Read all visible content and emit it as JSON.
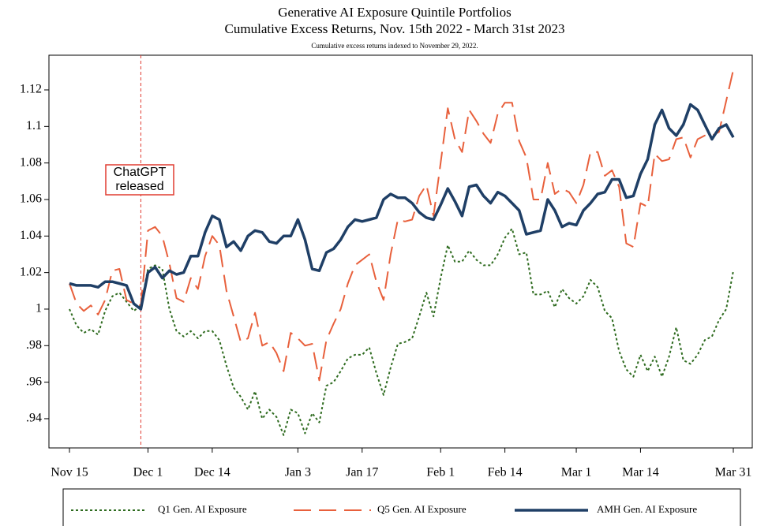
{
  "chart_data": {
    "type": "line",
    "title": [
      "Generative AI Exposure Quintile Portfolios",
      "Cumulative Excess Returns, Nov. 15th 2022 - March 31st 2023"
    ],
    "subtitle": "Cumulative excess returns indexed to November 29, 2022.",
    "categories": [
      "Nov 15",
      null,
      null,
      null,
      null,
      null,
      null,
      null,
      null,
      null,
      null,
      "Dec 1",
      null,
      null,
      null,
      null,
      null,
      null,
      null,
      null,
      "Dec 14",
      null,
      null,
      null,
      null,
      null,
      null,
      null,
      null,
      null,
      null,
      null,
      "Jan 3",
      null,
      null,
      null,
      null,
      null,
      null,
      null,
      null,
      "Jan 17",
      null,
      null,
      null,
      null,
      null,
      null,
      null,
      null,
      null,
      null,
      "Feb 1",
      null,
      null,
      null,
      null,
      null,
      null,
      null,
      null,
      "Feb 14",
      null,
      null,
      null,
      null,
      null,
      null,
      null,
      null,
      null,
      "Mar 1",
      null,
      null,
      null,
      null,
      null,
      null,
      null,
      null,
      "Mar 14",
      null,
      null,
      null,
      null,
      null,
      null,
      null,
      null,
      null,
      null,
      null,
      null,
      "Mar 31"
    ],
    "series": [
      {
        "name": "Q1 Gen. AI Exposure",
        "color": "#2e6b1f",
        "dash": "3,3",
        "values": [
          1.0,
          0.991,
          0.987,
          0.989,
          0.986,
          0.999,
          1.007,
          1.009,
          1.004,
          0.999,
          1.002,
          1.022,
          1.024,
          1.022,
          1.0,
          0.988,
          0.985,
          0.988,
          0.984,
          0.988,
          0.988,
          0.983,
          0.969,
          0.957,
          0.952,
          0.945,
          0.955,
          0.94,
          0.945,
          0.941,
          0.931,
          0.945,
          0.943,
          0.932,
          0.943,
          0.938,
          0.958,
          0.96,
          0.966,
          0.973,
          0.975,
          0.975,
          0.979,
          0.965,
          0.953,
          0.968,
          0.981,
          0.982,
          0.984,
          0.996,
          1.009,
          0.996,
          1.017,
          1.035,
          1.026,
          1.026,
          1.032,
          1.027,
          1.024,
          1.024,
          1.03,
          1.039,
          1.044,
          1.03,
          1.031,
          1.008,
          1.008,
          1.01,
          1.001,
          1.011,
          1.006,
          1.003,
          1.007,
          1.016,
          1.012,
          0.999,
          0.995,
          0.977,
          0.967,
          0.963,
          0.975,
          0.966,
          0.974,
          0.963,
          0.974,
          0.99,
          0.972,
          0.97,
          0.975,
          0.983,
          0.985,
          0.994,
          1.0,
          1.021
        ]
      },
      {
        "name": "Q5 Gen. AI Exposure",
        "color": "#e8603c",
        "dash": "22,10",
        "values": [
          1.014,
          1.003,
          0.999,
          1.002,
          0.997,
          1.005,
          1.021,
          1.022,
          1.005,
          1.003,
          1.002,
          1.043,
          1.045,
          1.04,
          1.025,
          1.006,
          1.004,
          1.017,
          1.011,
          1.029,
          1.04,
          1.035,
          1.01,
          0.996,
          0.982,
          0.984,
          0.998,
          0.98,
          0.982,
          0.976,
          0.966,
          0.987,
          0.984,
          0.98,
          0.981,
          0.961,
          0.983,
          0.992,
          1.0,
          1.014,
          1.024,
          1.027,
          1.03,
          1.015,
          1.005,
          1.03,
          1.049,
          1.048,
          1.049,
          1.062,
          1.068,
          1.051,
          1.08,
          1.11,
          1.093,
          1.086,
          1.109,
          1.103,
          1.096,
          1.091,
          1.107,
          1.113,
          1.113,
          1.092,
          1.083,
          1.06,
          1.06,
          1.08,
          1.063,
          1.066,
          1.064,
          1.058,
          1.068,
          1.086,
          1.086,
          1.073,
          1.076,
          1.067,
          1.036,
          1.034,
          1.058,
          1.056,
          1.085,
          1.081,
          1.082,
          1.093,
          1.094,
          1.083,
          1.093,
          1.095,
          1.095,
          1.097,
          1.114,
          1.131
        ]
      },
      {
        "name": "AMH Gen. AI Exposure",
        "color": "#1f3f66",
        "dash": "none",
        "values": [
          1.014,
          1.013,
          1.013,
          1.013,
          1.012,
          1.015,
          1.015,
          1.014,
          1.013,
          1.003,
          1.0,
          1.02,
          1.023,
          1.017,
          1.021,
          1.019,
          1.02,
          1.029,
          1.029,
          1.042,
          1.051,
          1.049,
          1.034,
          1.037,
          1.032,
          1.04,
          1.043,
          1.042,
          1.037,
          1.036,
          1.04,
          1.04,
          1.049,
          1.038,
          1.022,
          1.021,
          1.031,
          1.033,
          1.038,
          1.045,
          1.049,
          1.048,
          1.049,
          1.05,
          1.06,
          1.063,
          1.061,
          1.061,
          1.058,
          1.053,
          1.05,
          1.049,
          1.057,
          1.066,
          1.059,
          1.051,
          1.067,
          1.068,
          1.062,
          1.058,
          1.064,
          1.062,
          1.058,
          1.054,
          1.041,
          1.042,
          1.043,
          1.06,
          1.054,
          1.045,
          1.047,
          1.046,
          1.054,
          1.058,
          1.063,
          1.064,
          1.071,
          1.071,
          1.061,
          1.062,
          1.074,
          1.082,
          1.101,
          1.109,
          1.099,
          1.095,
          1.101,
          1.112,
          1.109,
          1.101,
          1.093,
          1.099,
          1.101,
          1.094
        ]
      }
    ],
    "ylim": [
      0.924,
      1.139
    ],
    "yticks": [
      {
        "value": 0.94,
        "label": ".94"
      },
      {
        "value": 0.96,
        "label": ".96"
      },
      {
        "value": 0.98,
        "label": ".98"
      },
      1,
      1.02,
      1.04,
      1.06,
      1.08,
      1.1,
      1.12
    ],
    "annotation": {
      "lines": [
        "ChatGPT",
        "released"
      ],
      "x": 10,
      "color": "#e03c31"
    },
    "legend": "bottom"
  }
}
